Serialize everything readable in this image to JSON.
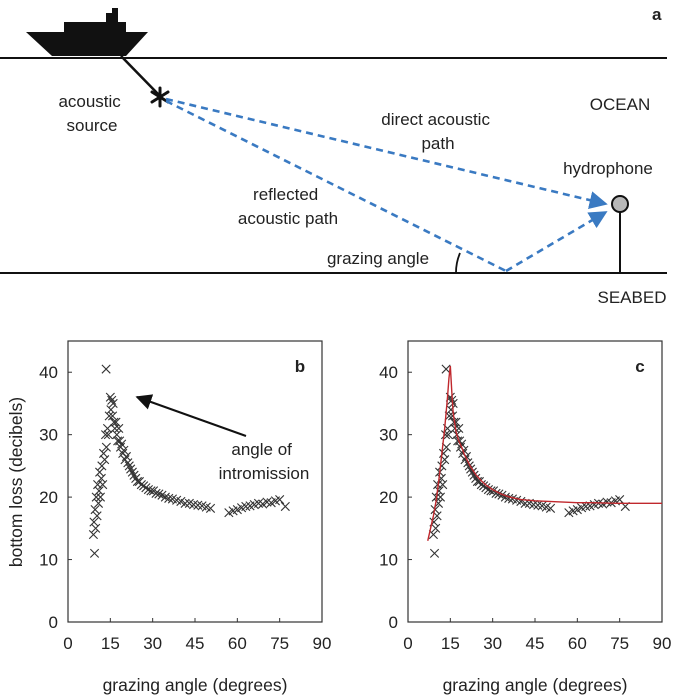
{
  "panel_a": {
    "letter": "a",
    "labels": {
      "source": [
        "acoustic",
        "source"
      ],
      "direct": [
        "direct acoustic",
        "path"
      ],
      "ocean": "OCEAN",
      "hydrophone": "hydrophone",
      "reflected": [
        "reflected",
        "acoustic path"
      ],
      "grazing": "grazing angle",
      "seabed": "SEABED"
    },
    "colors": {
      "path": "#3a7ac2",
      "line": "#111111",
      "hydrophone_fill": "#b8b8b8"
    }
  },
  "chart_data": [
    {
      "type": "scatter",
      "letter": "b",
      "xlabel": "grazing angle (degrees)",
      "ylabel": "bottom loss (decibels)",
      "xlim": [
        0,
        90
      ],
      "ylim": [
        0,
        45
      ],
      "xticks": [
        0,
        15,
        30,
        45,
        60,
        75,
        90
      ],
      "yticks": [
        0,
        10,
        20,
        30,
        40
      ],
      "annotation": {
        "text": [
          "angle of",
          "intromission"
        ],
        "points_to": [
          16,
          36.5
        ]
      },
      "x": [
        9,
        9.2,
        9.4,
        9.6,
        9.8,
        10,
        10.3,
        10.5,
        10.8,
        11,
        11.2,
        11.5,
        11.8,
        12,
        12.3,
        12.6,
        13,
        13.3,
        13.6,
        14,
        14.3,
        14.6,
        15,
        15.2,
        15.5,
        15.8,
        16,
        16.3,
        16.6,
        17,
        17.3,
        17.6,
        18,
        18.3,
        18.6,
        19,
        19.4,
        19.8,
        20.2,
        20.7,
        21.2,
        21.7,
        22.2,
        22.8,
        23.4,
        24,
        24.6,
        25.3,
        26,
        26.8,
        27.6,
        28.5,
        29.4,
        30.3,
        31.2,
        32.2,
        33.3,
        34.5,
        35.7,
        37,
        38.5,
        40,
        41.5,
        43,
        44.5,
        46,
        47.5,
        49,
        50.5,
        57,
        58.5,
        60,
        61.5,
        63,
        64.5,
        66,
        67.5,
        69,
        70.5,
        72,
        73.5,
        75,
        77,
        13.5
      ],
      "y": [
        14,
        16,
        11,
        18,
        15,
        20,
        17,
        22,
        19,
        21,
        24,
        20,
        23,
        25,
        22,
        27,
        26,
        30,
        28,
        31,
        30,
        33,
        36,
        34,
        35.5,
        33,
        35,
        32,
        31,
        32,
        30,
        29,
        31,
        29,
        28,
        28.5,
        27,
        27.5,
        26,
        26.5,
        25.5,
        25,
        24.5,
        24,
        23.5,
        23,
        22.5,
        22.5,
        22,
        21.8,
        21.5,
        21.2,
        21,
        21,
        20.6,
        20.5,
        20.3,
        20,
        19.8,
        19.7,
        19.5,
        19.3,
        19,
        19,
        18.8,
        18.7,
        18.6,
        18.4,
        18.2,
        17.5,
        17.8,
        18,
        18.3,
        18.5,
        18.6,
        18.8,
        19,
        18.9,
        19.2,
        19.1,
        19.4,
        19.6,
        18.5,
        40.5
      ],
      "marker": "x"
    },
    {
      "type": "scatter",
      "letter": "c",
      "xlabel": "grazing angle (degrees)",
      "ylabel": "",
      "xlim": [
        0,
        90
      ],
      "ylim": [
        0,
        45
      ],
      "xticks": [
        0,
        15,
        30,
        45,
        60,
        75,
        90
      ],
      "yticks": [
        0,
        10,
        20,
        30,
        40
      ],
      "marker": "x",
      "fit_color": "#c0282d",
      "fit_line": {
        "x": [
          7,
          8,
          9,
          10,
          11,
          12,
          13,
          14,
          14.5,
          15,
          15.5,
          16,
          17,
          18,
          19,
          20,
          22,
          24,
          26,
          28,
          30,
          33,
          36,
          40,
          45,
          50,
          55,
          60,
          65,
          70,
          75,
          80,
          85,
          90
        ],
        "y": [
          13,
          15,
          17,
          19.5,
          23,
          27,
          31,
          36,
          39,
          41,
          37,
          33.5,
          30.5,
          29,
          28,
          26.8,
          25,
          23.6,
          22.6,
          21.8,
          21.2,
          20.5,
          20,
          19.6,
          19.4,
          19.3,
          19.2,
          19.1,
          19.1,
          19.05,
          19,
          19,
          19,
          19
        ]
      }
    }
  ]
}
